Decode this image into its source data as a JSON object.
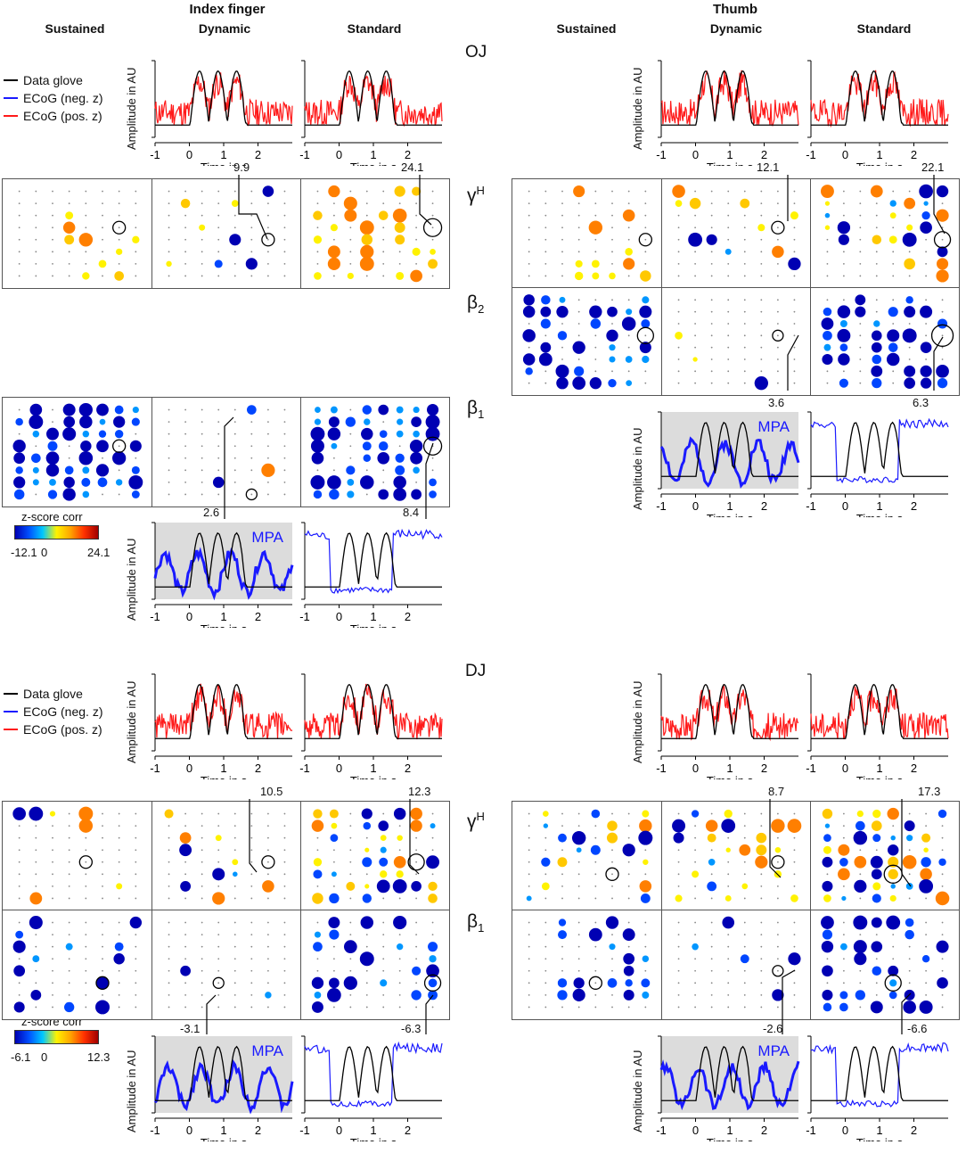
{
  "headers": {
    "index": "Index finger",
    "thumb": "Thumb"
  },
  "columns": {
    "sustained": "Sustained",
    "dynamic": "Dynamic",
    "standard": "Standard"
  },
  "patients": {
    "oj": "OJ",
    "dj": "DJ"
  },
  "bands": {
    "gamma": "γ",
    "gamma_sup": "H",
    "beta": "β",
    "beta2_sub": "2",
    "beta1_sub": "1"
  },
  "legend": {
    "glove": "Data glove",
    "neg": "ECoG (neg. z)",
    "pos": "ECoG (pos. z)"
  },
  "axes": {
    "time": "Time in s",
    "amp": "Amplitude in AU",
    "xticks": [
      "-1",
      "0",
      "1",
      "2"
    ]
  },
  "mpa": "MPA",
  "colorbars": {
    "title": "z-score corr",
    "oj": {
      "min": "-12.1",
      "zero": "0",
      "max": "24.1"
    },
    "dj": {
      "min": "-6.1",
      "zero": "0",
      "max": "12.3"
    }
  },
  "callouts": {
    "oj_idx_gh_dyn": "9.9",
    "oj_idx_gh_std": "24.1",
    "oj_th_gh_dyn": "12.1",
    "oj_th_gh_std": "22.1",
    "oj_th_b2_dyn": "3.6",
    "oj_th_b2_std": "6.3",
    "oj_idx_b1_dyn": "2.6",
    "oj_idx_b1_std": "8.4",
    "dj_idx_gh_dyn": "10.5",
    "dj_idx_gh_std": "12.3",
    "dj_th_gh_dyn": "8.7",
    "dj_th_gh_std": "17.3",
    "dj_idx_b1_dyn": "-3.1",
    "dj_idx_b1_std": "-6.3",
    "dj_th_b1_dyn": "-2.6",
    "dj_th_b1_std": "-6.6"
  },
  "colors": {
    "glove": "#000000",
    "neg": "#1a1aff",
    "pos": "#ff1a1a",
    "gray": "#dcdcdc"
  }
}
